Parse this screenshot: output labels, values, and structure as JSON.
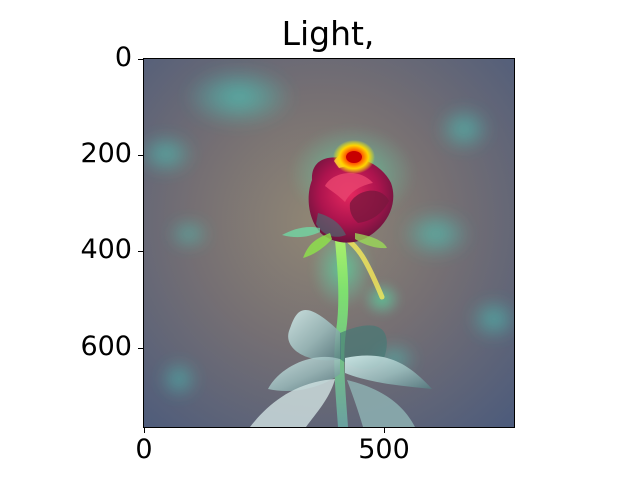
{
  "figure": {
    "title": "Light,",
    "image": {
      "subject": "red-rose-heatmap-overlay",
      "colors": {
        "background_dark": "#4a5a7c",
        "background_mid": "#6f7b6c",
        "teal_glow": "#46d3c1",
        "rose_red": "#b6114d",
        "hotspot_red": "#ff2a00",
        "hotspot_yellow": "#f2ff00",
        "stem_green": "#75d58a",
        "leaf_light": "#a6c8c4"
      }
    },
    "y_axis": {
      "ticks": [
        "0",
        "200",
        "400",
        "600"
      ]
    },
    "x_axis": {
      "ticks": [
        "0",
        "500"
      ]
    }
  }
}
